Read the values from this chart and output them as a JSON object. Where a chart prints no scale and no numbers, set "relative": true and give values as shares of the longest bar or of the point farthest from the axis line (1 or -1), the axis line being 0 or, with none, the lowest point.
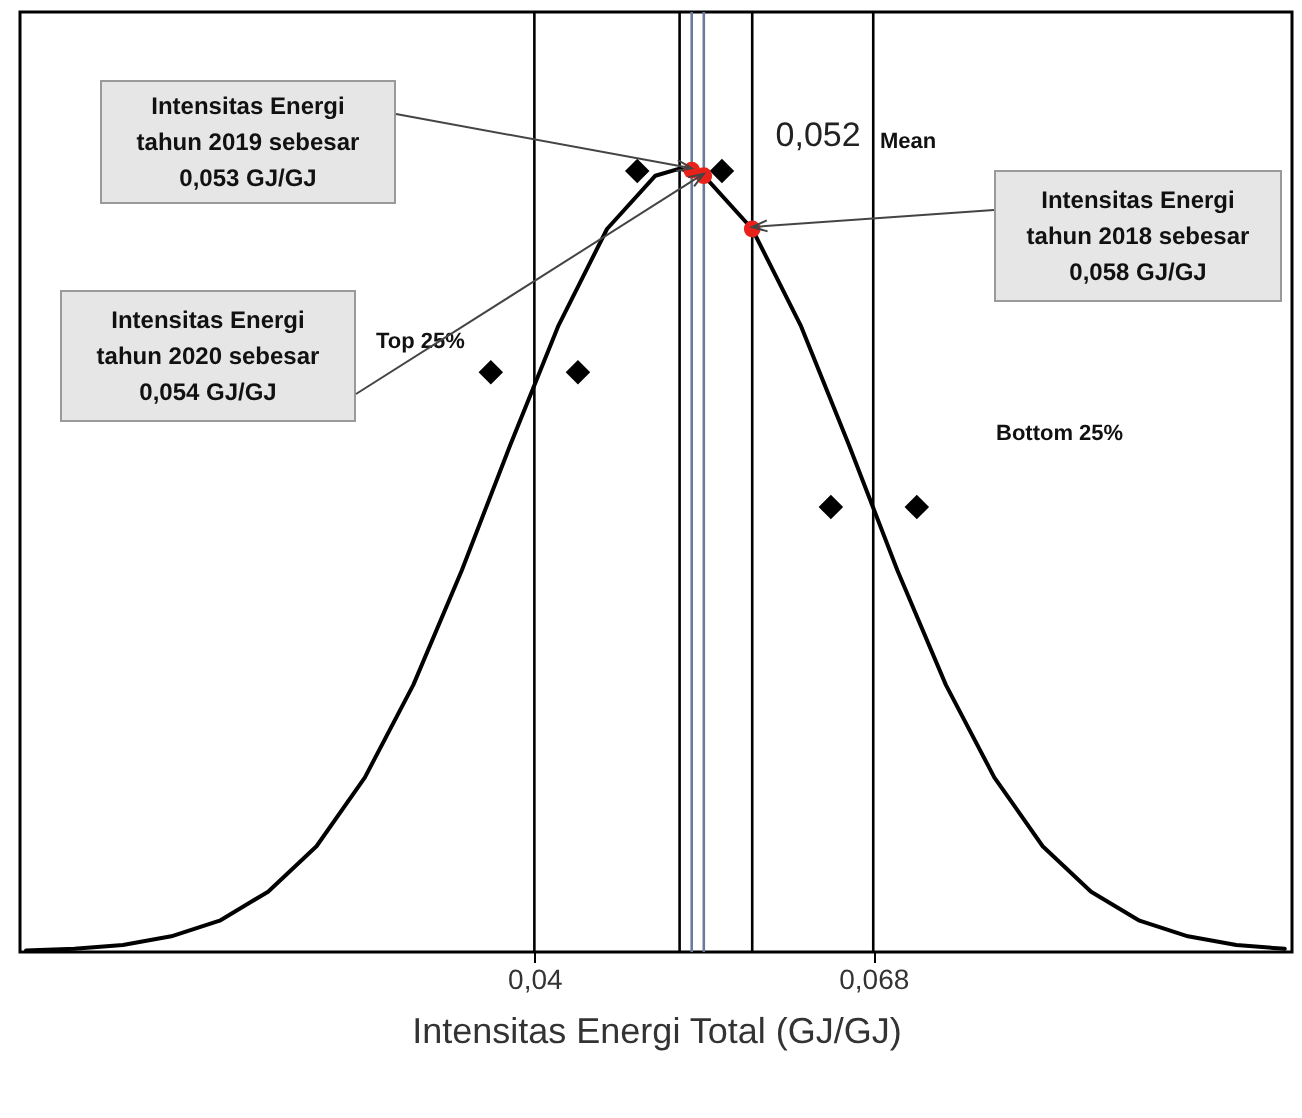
{
  "chart_data": {
    "type": "line",
    "xlabel": "Intensitas Energi Total (GJ/GJ)",
    "relative": true,
    "xlim": [
      -0.0025,
      0.1026
    ],
    "xticks": [
      {
        "value": 0.04,
        "label": "0,04"
      },
      {
        "value": 0.068,
        "label": "0,068"
      }
    ],
    "grid": false,
    "marker": "none",
    "line_style": "solid",
    "series": [
      {
        "type": "line",
        "color": "#000000",
        "x": [
          -0.002,
          0.002,
          0.006,
          0.01,
          0.014,
          0.018,
          0.022,
          0.026,
          0.03,
          0.034,
          0.038,
          0.042,
          0.046,
          0.05,
          0.052,
          0.054,
          0.058,
          0.062,
          0.066,
          0.07,
          0.074,
          0.078,
          0.082,
          0.086,
          0.09,
          0.094,
          0.098,
          0.102
        ],
        "values": [
          0.002,
          0.004,
          0.009,
          0.02,
          0.04,
          0.077,
          0.135,
          0.223,
          0.341,
          0.487,
          0.647,
          0.8,
          0.923,
          0.991,
          1,
          0.991,
          0.923,
          0.8,
          0.647,
          0.487,
          0.341,
          0.223,
          0.135,
          0.077,
          0.04,
          0.02,
          0.009,
          0.004
        ]
      },
      {
        "type": "scatter",
        "marker": "diamond",
        "color": "#000000",
        "x": [
          0.0485,
          0.0555,
          0.0364,
          0.0436,
          0.0645,
          0.0716
        ],
        "values": [
          0.997,
          0.997,
          0.74,
          0.74,
          0.568,
          0.568
        ]
      },
      {
        "type": "scatter",
        "marker": "circle",
        "color": "#e8221a",
        "x": [
          0.053,
          0.054,
          0.058
        ],
        "values": [
          0.998,
          0.991,
          0.923
        ]
      }
    ],
    "ref_lines": [
      {
        "axis": "x",
        "value": 0.04
      },
      {
        "axis": "x",
        "value": 0.052,
        "label": "0,052"
      },
      {
        "axis": "x",
        "value": 0.053,
        "color": "#6a7c99"
      },
      {
        "axis": "x",
        "value": 0.054,
        "color": "#6a7c99"
      },
      {
        "axis": "x",
        "value": 0.058
      },
      {
        "axis": "x",
        "value": 0.068
      }
    ],
    "annotations": [
      "Intensitas Energi\ntahun 2019 sebesar\n0,053 GJ/GJ",
      "Intensitas Energi\ntahun 2020 sebesar\n0,054 GJ/GJ",
      "Intensitas Energi\ntahun 2018 sebesar\n0,058 GJ/GJ",
      "Top 25%",
      "Bottom 25%",
      "Mean"
    ]
  }
}
